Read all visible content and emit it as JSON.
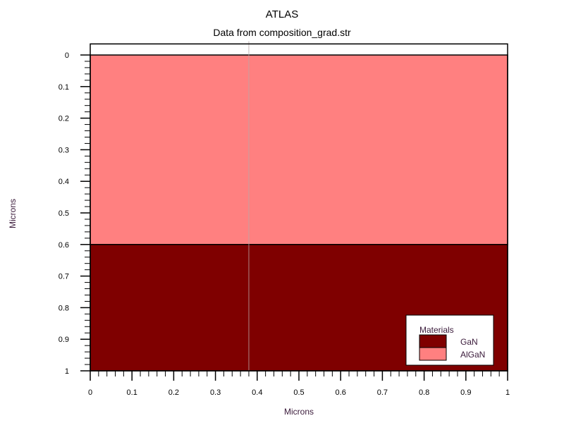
{
  "chart_data": {
    "type": "heatmap",
    "title": "ATLAS",
    "subtitle": "Data from composition_grad.str",
    "xlabel": "Microns",
    "ylabel": "Microns",
    "xlim": [
      0,
      1
    ],
    "ylim": [
      0,
      1
    ],
    "y_inverted": true,
    "x_ticks": [
      0,
      0.1,
      0.2,
      0.3,
      0.4,
      0.5,
      0.6,
      0.7,
      0.8,
      0.9,
      1
    ],
    "y_ticks": [
      0,
      0.1,
      0.2,
      0.3,
      0.4,
      0.5,
      0.6,
      0.7,
      0.8,
      0.9,
      1
    ],
    "x_tick_labels": [
      "0",
      "0.1",
      "0.2",
      "0.3",
      "0.4",
      "0.5",
      "0.6",
      "0.7",
      "0.8",
      "0.9",
      "1"
    ],
    "y_tick_labels": [
      "0",
      "0.1",
      "0.2",
      "0.3",
      "0.4",
      "0.5",
      "0.6",
      "0.7",
      "0.8",
      "0.9",
      "1"
    ],
    "top_margin_region": [
      -0.035,
      0
    ],
    "divider_x": 0.38,
    "regions": [
      {
        "material": "AlGaN",
        "x": [
          0,
          1
        ],
        "y": [
          0,
          0.6
        ],
        "color": "#ff8080"
      },
      {
        "material": "GaN",
        "x": [
          0,
          1
        ],
        "y": [
          0.6,
          1
        ],
        "color": "#7f0000"
      }
    ],
    "legend": {
      "title": "Materials",
      "position": "bottom-right",
      "entries": [
        {
          "label": "GaN",
          "color": "#7f0000"
        },
        {
          "label": "AlGaN",
          "color": "#ff8080"
        }
      ]
    }
  }
}
